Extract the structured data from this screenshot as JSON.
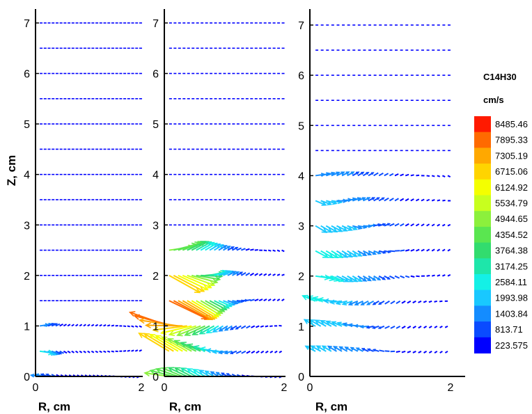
{
  "chart_data": {
    "type": "vector-field",
    "shared_ylabel": "Z, cm",
    "panels": [
      {
        "xlabel": "R, cm",
        "xlim": [
          0,
          2
        ],
        "ylim": [
          0,
          7
        ],
        "xticks": [
          "0",
          "2"
        ],
        "yticks": [
          "0",
          "1",
          "2",
          "3",
          "4",
          "5",
          "6",
          "7"
        ],
        "vector_rows_z": [
          0,
          0.5,
          1,
          1.5,
          2,
          2.5,
          3,
          3.5,
          4,
          4.5,
          5,
          5.5,
          6,
          6.5,
          7
        ],
        "active_region": {
          "z_max": 1.0,
          "r_max": 0.5,
          "peak_velocity": 2600
        }
      },
      {
        "xlabel": "R, cm",
        "xlim": [
          0,
          2
        ],
        "ylim": [
          0,
          7
        ],
        "xticks": [
          "0",
          "2"
        ],
        "yticks": [
          "0",
          "1",
          "2",
          "3",
          "4",
          "5",
          "6",
          "7"
        ],
        "vector_rows_z": [
          0,
          0.5,
          1,
          1.5,
          2,
          2.5,
          3,
          3.5,
          4,
          4.5,
          5,
          5.5,
          6,
          6.5,
          7
        ],
        "active_region": {
          "z_max": 2.5,
          "r_max": 1.2,
          "peak_velocity": 8400
        }
      },
      {
        "xlabel": "R, cm",
        "xlim": [
          0,
          2
        ],
        "ylim": [
          0,
          7
        ],
        "xticks": [
          "0",
          "2"
        ],
        "yticks": [
          "0",
          "1",
          "2",
          "3",
          "4",
          "5",
          "6",
          "7"
        ],
        "vector_rows_z": [
          0.5,
          1,
          1.5,
          2,
          2.5,
          3,
          3.5,
          4,
          4.5,
          5,
          5.5,
          6,
          6.5,
          7
        ],
        "active_region": {
          "z_max": 4.0,
          "r_max": 1.4,
          "peak_velocity": 2600
        }
      }
    ],
    "legend": {
      "title": "C14H30",
      "unit": "cm/s",
      "levels": [
        "8485.46",
        "7895.33",
        "7305.19",
        "6715.06",
        "6124.92",
        "5534.79",
        "4944.65",
        "4354.52",
        "3764.38",
        "3174.25",
        "2584.11",
        "1993.98",
        "1403.84",
        "813.71",
        "223.575"
      ],
      "colors": [
        "#ff1a00",
        "#ff6a00",
        "#ffa800",
        "#ffd400",
        "#f4ff00",
        "#c8ff1e",
        "#8cf03c",
        "#5ae650",
        "#32dc6e",
        "#1ee6aa",
        "#14f0e6",
        "#19c8ff",
        "#148cff",
        "#0a4bff",
        "#0000ff"
      ]
    }
  }
}
